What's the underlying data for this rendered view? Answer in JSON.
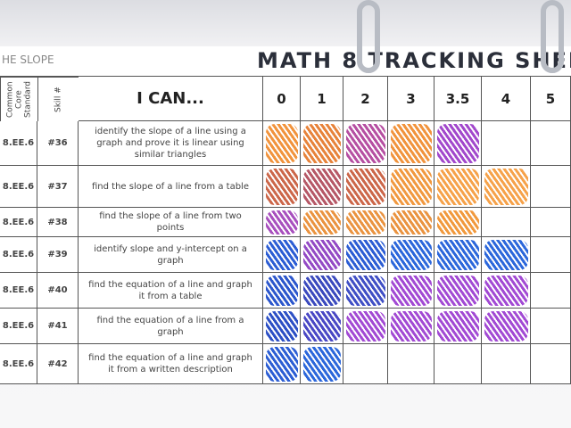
{
  "header": {
    "title": "MATH 8 TRACKING SHEE",
    "side_label": "HE SLOPE"
  },
  "table": {
    "columns": [
      "Common Core Standard",
      "Skill #",
      "I CAN...",
      "0",
      "1",
      "2",
      "3",
      "3.5",
      "4",
      "5"
    ],
    "rows": [
      {
        "standard": "8.EE.6",
        "skill": "#36",
        "can": "identify the slope of a line using a graph and prove it is linear using similar triangles",
        "marks": [
          "#f08a2c",
          "#e5782a",
          "#b0409a",
          "#f08a2c",
          "#9a38c8"
        ]
      },
      {
        "standard": "8.EE.6",
        "skill": "#37",
        "can": "find the slope of a line from a table",
        "marks": [
          "#c85a3a",
          "#b04a5a",
          "#c85a3a",
          "#f09030",
          "#f59a3a",
          "#f59a3a"
        ]
      },
      {
        "standard": "8.EE.6",
        "skill": "#38",
        "can": "find the slope of a line from two points",
        "marks": [
          "#a040b8",
          "#e88a30",
          "#e88a30",
          "#e88a30",
          "#f0902c"
        ]
      },
      {
        "standard": "8.EE.6",
        "skill": "#39",
        "can": "identify slope and y-intercept on a graph",
        "marks": [
          "#1a4fd0",
          "#8a3ac0",
          "#1a4fd0",
          "#1a5ad8",
          "#1a5ad8",
          "#1a5ad8"
        ]
      },
      {
        "standard": "8.EE.6",
        "skill": "#40",
        "can": "find the equation of a line and graph it from a table",
        "marks": [
          "#1a48c8",
          "#2a3ab8",
          "#3040c0",
          "#9a3ad0",
          "#9a3ad0",
          "#9a3ad0"
        ]
      },
      {
        "standard": "8.EE.6",
        "skill": "#41",
        "can": "find the equation of a line from a graph",
        "marks": [
          "#1a40c0",
          "#3a38c0",
          "#9a3ad0",
          "#9a3ad0",
          "#9a3ad0",
          "#9a3ad0"
        ]
      },
      {
        "standard": "8.EE.6",
        "skill": "#42",
        "can": "find the equation of a line and graph it from a written description",
        "marks": [
          "#1a50d0",
          "#1a5ad8"
        ]
      }
    ]
  }
}
